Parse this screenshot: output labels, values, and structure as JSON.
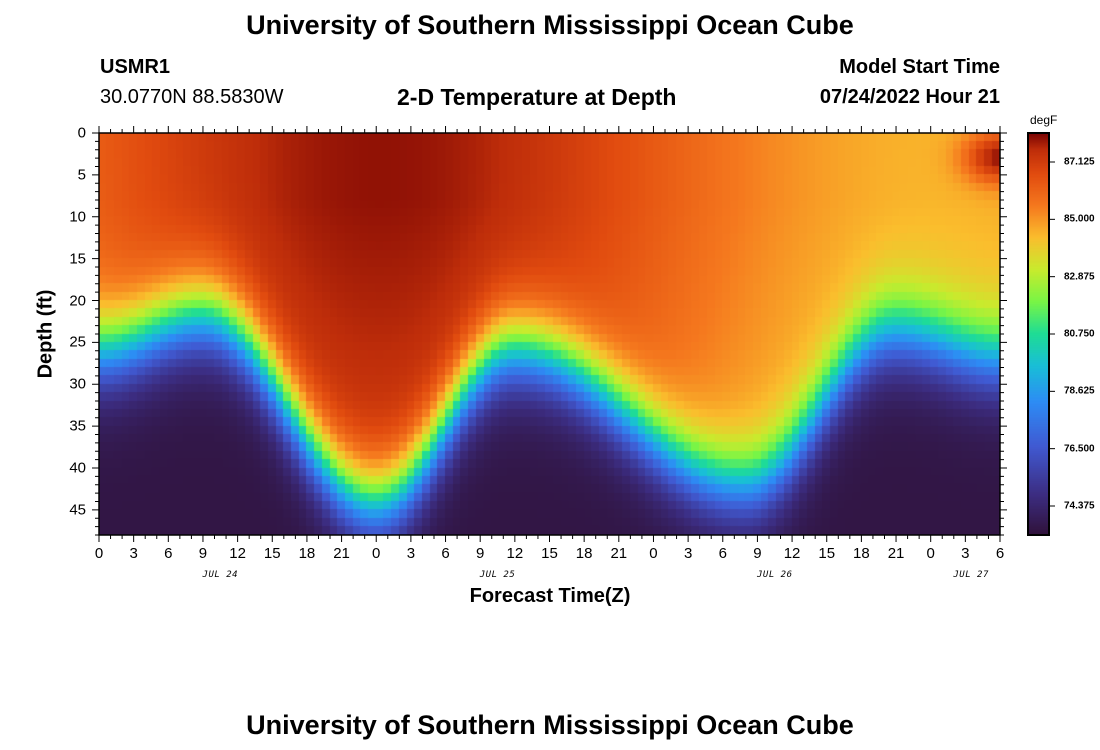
{
  "page": {
    "title_top": "University of Southern Mississippi Ocean Cube",
    "title_bottom": "University of Southern Mississippi Ocean Cube",
    "station_id": "USMR1",
    "station_coords": "30.0770N  88.5830W",
    "plot_title": "2-D Temperature at Depth",
    "model_start_label": "Model Start Time",
    "model_start_value": "07/24/2022 Hour 21"
  },
  "chart_data": {
    "type": "heatmap",
    "title": "2-D Temperature at Depth",
    "xlabel": "Forecast Time(Z)",
    "ylabel": "Depth (ft)",
    "x_range_hours": [
      0,
      78
    ],
    "y_range_ft": [
      0,
      48
    ],
    "x_tick_labels": [
      "0",
      "3",
      "6",
      "9",
      "12",
      "15",
      "18",
      "21",
      "0",
      "3",
      "6",
      "9",
      "12",
      "15",
      "18",
      "21",
      "0",
      "3",
      "6",
      "9",
      "12",
      "15",
      "18",
      "21",
      "0",
      "3",
      "6"
    ],
    "x_tick_hours": [
      0,
      3,
      6,
      9,
      12,
      15,
      18,
      21,
      24,
      27,
      30,
      33,
      36,
      39,
      42,
      45,
      48,
      51,
      54,
      57,
      60,
      63,
      66,
      69,
      72,
      75,
      78
    ],
    "date_labels": [
      {
        "text": "JUL 24",
        "hour": 10.5
      },
      {
        "text": "JUL 25",
        "hour": 34.5
      },
      {
        "text": "JUL 26",
        "hour": 58.5
      },
      {
        "text": "JUL 27",
        "hour": 75.5
      }
    ],
    "y_tick_labels": [
      "0",
      "5",
      "10",
      "15",
      "20",
      "25",
      "30",
      "35",
      "40",
      "45"
    ],
    "y_tick_values": [
      0,
      5,
      10,
      15,
      20,
      25,
      30,
      35,
      40,
      45
    ],
    "colorbar": {
      "unit": "degF",
      "min": 73.3,
      "max": 88.2,
      "tick_labels": [
        "87.125",
        "85.000",
        "82.875",
        "80.750",
        "78.625",
        "76.500",
        "74.375"
      ],
      "tick_values": [
        87.125,
        85.0,
        82.875,
        80.75,
        78.625,
        76.5,
        74.375
      ]
    },
    "field": {
      "description_units": "temperature degF vs forecast hour and depth ft",
      "thermocline_depth_ft_by_hour": [
        [
          0,
          26
        ],
        [
          9,
          22
        ],
        [
          24,
          44
        ],
        [
          36,
          26
        ],
        [
          56,
          42
        ],
        [
          69,
          24
        ],
        [
          78,
          27
        ]
      ],
      "surface_temp_range_degF": [
        84.5,
        88.0
      ],
      "bottom_temp_degF": 73.5,
      "warm_spots": [
        {
          "hour": 20,
          "depth_ft": 3,
          "temp_degF": 87.8
        },
        {
          "hour": 78,
          "depth_ft": 3,
          "temp_degF": 88.0
        }
      ]
    }
  }
}
